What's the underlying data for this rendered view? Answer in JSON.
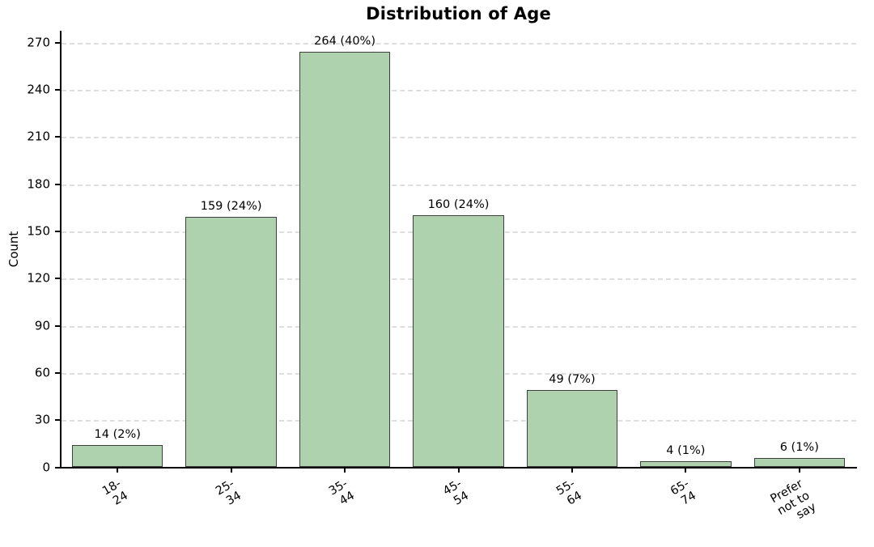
{
  "chart_data": {
    "type": "bar",
    "title": "Distribution of Age",
    "xlabel": "",
    "ylabel": "Count",
    "categories": [
      "18-24",
      "25-34",
      "35-44",
      "45-54",
      "55-64",
      "65-74",
      "Prefer not to\nsay"
    ],
    "values": [
      14,
      159,
      264,
      160,
      49,
      4,
      6
    ],
    "bar_labels": [
      "14 (2%)",
      "159 (24%)",
      "264 (40%)",
      "160 (24%)",
      "49 (7%)",
      "4 (1%)",
      "6 (1%)"
    ],
    "y_ticks": [
      0,
      30,
      60,
      90,
      120,
      150,
      180,
      210,
      240,
      270
    ],
    "ylim": [
      0,
      277
    ],
    "grid": "horizontal-dashed",
    "legend": "none",
    "colors": {
      "bar_fill": "#aed2ad",
      "bar_edge": "#3f3f3f",
      "gridline": "#dedede",
      "axis": "#000000",
      "background": "#ffffff",
      "text": "#000000"
    }
  }
}
